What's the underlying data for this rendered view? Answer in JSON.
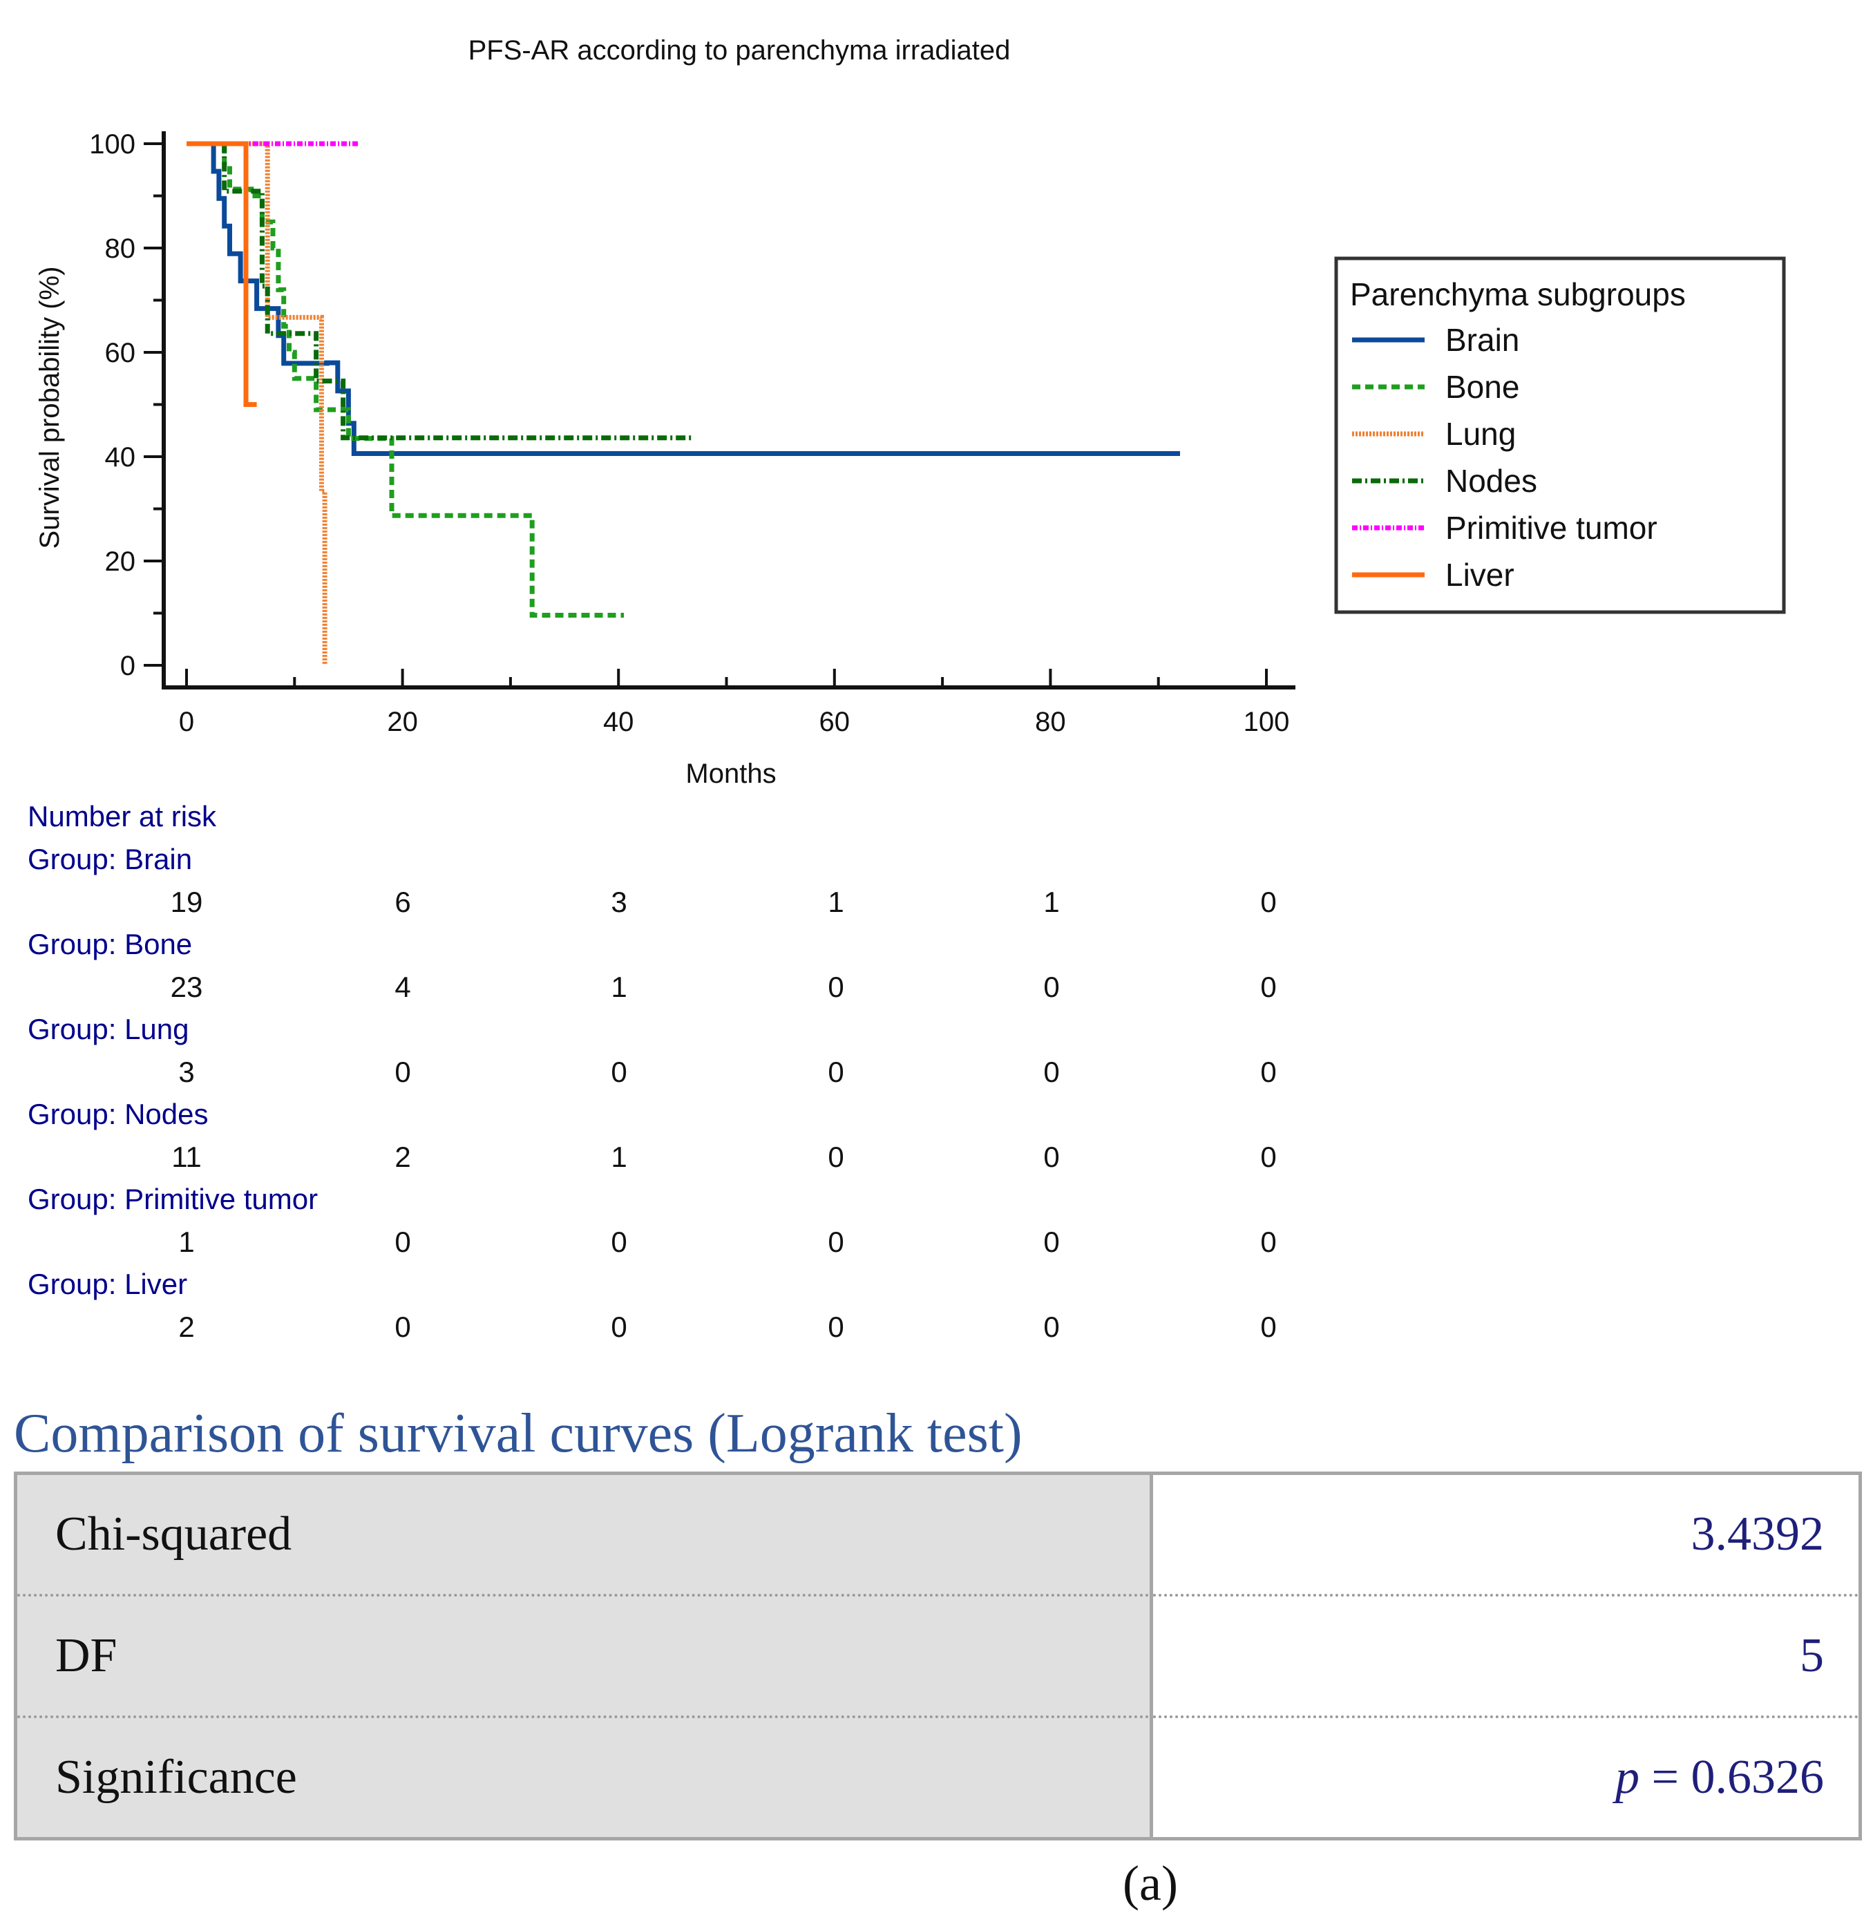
{
  "chart_data": {
    "type": "line",
    "title": "PFS-AR according to parenchyma irradiated",
    "xlabel": "Months",
    "ylabel": "Survival probability (%)",
    "xlim": [
      0,
      100
    ],
    "ylim": [
      0,
      100
    ],
    "x_ticks": [
      0,
      20,
      40,
      60,
      80,
      100
    ],
    "y_ticks": [
      0,
      20,
      40,
      60,
      80,
      100
    ],
    "legend": {
      "title": "Parenchyma subgroups",
      "placement": "right"
    },
    "series": [
      {
        "name": "Brain",
        "color": "#0b4a9a",
        "dash": "solid",
        "points": [
          [
            0,
            100
          ],
          [
            2.5,
            100
          ],
          [
            2.5,
            94.7
          ],
          [
            3,
            94.7
          ],
          [
            3,
            89.5
          ],
          [
            3.5,
            89.5
          ],
          [
            3.5,
            84.2
          ],
          [
            4,
            84.2
          ],
          [
            4,
            78.9
          ],
          [
            5,
            78.9
          ],
          [
            5,
            73.7
          ],
          [
            6.5,
            73.7
          ],
          [
            6.5,
            68.4
          ],
          [
            8.5,
            68.4
          ],
          [
            8.5,
            63.2
          ],
          [
            9,
            63.2
          ],
          [
            9,
            57.9
          ],
          [
            13,
            57.9
          ],
          [
            13,
            58
          ],
          [
            14,
            58
          ],
          [
            14,
            52.6
          ],
          [
            15,
            52.6
          ],
          [
            15,
            46.4
          ],
          [
            15.5,
            46.4
          ],
          [
            15.5,
            40.6
          ],
          [
            92,
            40.6
          ]
        ]
      },
      {
        "name": "Bone",
        "color": "#1f9e1f",
        "dash": "12 7",
        "points": [
          [
            0,
            100
          ],
          [
            3.5,
            100
          ],
          [
            3.5,
            95.7
          ],
          [
            4,
            95.7
          ],
          [
            4,
            91.3
          ],
          [
            6,
            91.3
          ],
          [
            6,
            90
          ],
          [
            7,
            90
          ],
          [
            7,
            85
          ],
          [
            8,
            85
          ],
          [
            8,
            80
          ],
          [
            8.5,
            80
          ],
          [
            8.5,
            72
          ],
          [
            9,
            72
          ],
          [
            9,
            65
          ],
          [
            9.5,
            65
          ],
          [
            9.5,
            60
          ],
          [
            10,
            60
          ],
          [
            10,
            55
          ],
          [
            12,
            55
          ],
          [
            12,
            49
          ],
          [
            15,
            49
          ],
          [
            15,
            43.5
          ],
          [
            19,
            43.5
          ],
          [
            19,
            28.7
          ],
          [
            32,
            28.7
          ],
          [
            32,
            9.6
          ],
          [
            40.5,
            9.6
          ]
        ]
      },
      {
        "name": "Lung",
        "color": "#f08030",
        "dash": "3 2",
        "points": [
          [
            0,
            100
          ],
          [
            7.5,
            100
          ],
          [
            7.5,
            66.7
          ],
          [
            12.5,
            66.7
          ],
          [
            12.5,
            33.3
          ],
          [
            12.8,
            33.3
          ],
          [
            12.8,
            0
          ]
        ]
      },
      {
        "name": "Nodes",
        "color": "#0a6a0a",
        "dash": "14 5 3 5",
        "points": [
          [
            0,
            100
          ],
          [
            3.5,
            100
          ],
          [
            3.5,
            90.9
          ],
          [
            7,
            90.9
          ],
          [
            7,
            72.7
          ],
          [
            7.5,
            72.7
          ],
          [
            7.5,
            63.6
          ],
          [
            12,
            63.6
          ],
          [
            12,
            54.5
          ],
          [
            14.5,
            54.5
          ],
          [
            14.5,
            43.6
          ],
          [
            47,
            43.6
          ]
        ]
      },
      {
        "name": "Primitive tumor",
        "color": "#ff00ff",
        "dash": "8 3 2 3",
        "points": [
          [
            0,
            100
          ],
          [
            16,
            100
          ]
        ]
      },
      {
        "name": "Liver",
        "color": "#ff6a10",
        "dash": "solid",
        "points": [
          [
            0,
            100
          ],
          [
            5.5,
            100
          ],
          [
            5.5,
            50
          ],
          [
            6.5,
            50
          ]
        ]
      }
    ]
  },
  "risk_table": {
    "title": "Number at risk",
    "time_points": [
      0,
      20,
      40,
      60,
      80,
      100
    ],
    "groups": [
      {
        "label": "Group: Brain",
        "counts": [
          "19",
          "6",
          "3",
          "1",
          "1",
          "0"
        ]
      },
      {
        "label": "Group: Bone",
        "counts": [
          "23",
          "4",
          "1",
          "0",
          "0",
          "0"
        ]
      },
      {
        "label": "Group: Lung",
        "counts": [
          "3",
          "0",
          "0",
          "0",
          "0",
          "0"
        ]
      },
      {
        "label": "Group: Nodes",
        "counts": [
          "11",
          "2",
          "1",
          "0",
          "0",
          "0"
        ]
      },
      {
        "label": "Group: Primitive tumor",
        "counts": [
          "1",
          "0",
          "0",
          "0",
          "0",
          "0"
        ]
      },
      {
        "label": "Group: Liver",
        "counts": [
          "2",
          "0",
          "0",
          "0",
          "0",
          "0"
        ]
      }
    ]
  },
  "logrank": {
    "title": "Comparison of survival curves (Logrank test)",
    "rows": [
      {
        "label": "Chi-squared",
        "value": "3.4392"
      },
      {
        "label": "DF",
        "value": "5"
      },
      {
        "label": "Significance",
        "p_symbol": "p",
        "value": " = 0.6326"
      }
    ]
  },
  "panel_label": "(a)"
}
